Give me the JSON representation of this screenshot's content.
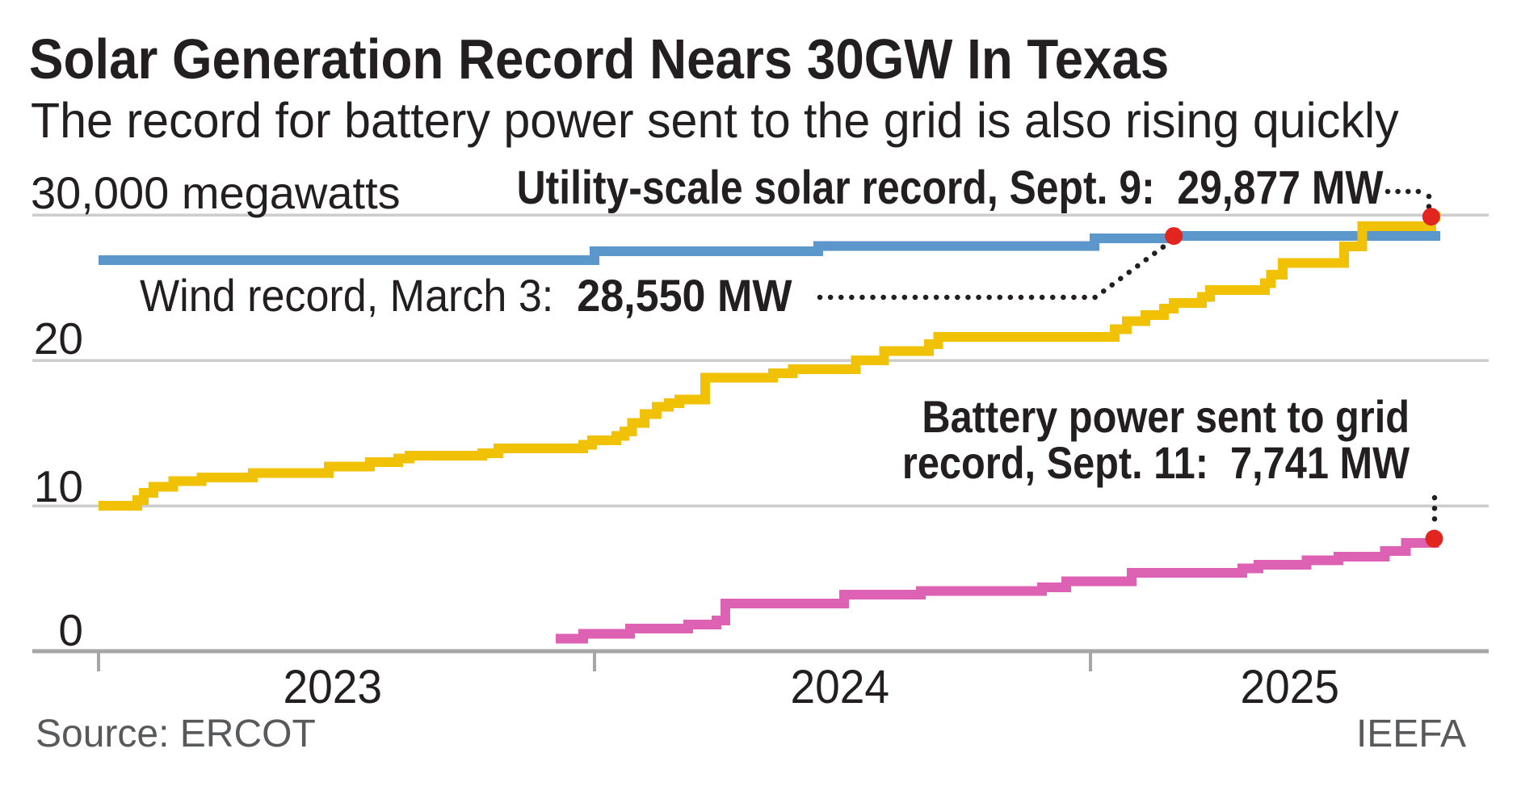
{
  "title": "Solar Generation Record Nears 30GW In Texas",
  "subtitle": "The record for battery power sent to the grid is also rising quickly",
  "y_axis": {
    "top_label": "30,000 megawatts",
    "tick_20": "20",
    "tick_10": "10",
    "tick_0": "0"
  },
  "x_axis": {
    "tick_2023": "2023",
    "tick_2024": "2024",
    "tick_2025": "2025"
  },
  "annotations": {
    "solar": {
      "prefix": "Utility-scale solar record, Sept. 9:",
      "value": "29,877 MW"
    },
    "wind": {
      "prefix": "Wind record, March 3:",
      "value": "28,550 MW"
    },
    "battery": {
      "line1": "Battery power sent to grid",
      "prefix": "record, Sept. 11:",
      "value": "7,741 MW"
    }
  },
  "source": "Source: ERCOT",
  "credit": "IEEFA",
  "colors": {
    "solar": "#f0c104",
    "wind": "#5b97cb",
    "battery": "#dd62b4",
    "marker": "#e3251f",
    "gridline": "#cdcdcd",
    "axis": "#a6a6a6",
    "text": "#231f20",
    "muted_text": "#58595b"
  },
  "chart_data": {
    "type": "line",
    "style": "step-after-record-lines",
    "xlabel": "",
    "ylabel": "megawatts",
    "x_range_years": [
      2023.0,
      2025.71
    ],
    "y_range_mw": [
      0,
      32000
    ],
    "y_gridlines_mw": [
      10000,
      20000,
      30000
    ],
    "x_ticks_years": [
      2023,
      2024,
      2025
    ],
    "grid": true,
    "legend_position": "annotated-inline",
    "series": [
      {
        "name": "Wind record",
        "color": "#5b97cb",
        "end_year": 2025.705,
        "marker": {
          "year": 2025.168,
          "mw": 28550,
          "label": "Wind record, March 3: 28,550 MW"
        },
        "steps": [
          [
            2023.0,
            26900
          ],
          [
            2024.0,
            27500
          ],
          [
            2024.451,
            27850
          ],
          [
            2025.008,
            28400
          ],
          [
            2025.168,
            28550
          ]
        ]
      },
      {
        "name": "Utility-scale solar record",
        "color": "#f0c104",
        "end_year": 2025.705,
        "marker": {
          "year": 2025.687,
          "mw": 29877,
          "label": "Utility-scale solar record, Sept. 9: 29,877 MW"
        },
        "steps": [
          [
            2023.0,
            10000
          ],
          [
            2023.078,
            10400
          ],
          [
            2023.091,
            10900
          ],
          [
            2023.111,
            11300
          ],
          [
            2023.151,
            11700
          ],
          [
            2023.208,
            11950
          ],
          [
            2023.311,
            12250
          ],
          [
            2023.464,
            12700
          ],
          [
            2023.547,
            13000
          ],
          [
            2023.604,
            13250
          ],
          [
            2023.627,
            13450
          ],
          [
            2023.774,
            13600
          ],
          [
            2023.806,
            13950
          ],
          [
            2023.977,
            14200
          ],
          [
            2023.995,
            14500
          ],
          [
            2024.044,
            14800
          ],
          [
            2024.06,
            15100
          ],
          [
            2024.076,
            15700
          ],
          [
            2024.101,
            16300
          ],
          [
            2024.125,
            16800
          ],
          [
            2024.15,
            17050
          ],
          [
            2024.171,
            17300
          ],
          [
            2024.223,
            18800
          ],
          [
            2024.36,
            19100
          ],
          [
            2024.4,
            19390
          ],
          [
            2024.527,
            20000
          ],
          [
            2024.584,
            20650
          ],
          [
            2024.674,
            21100
          ],
          [
            2024.693,
            21600
          ],
          [
            2025.049,
            22150
          ],
          [
            2025.073,
            22700
          ],
          [
            2025.111,
            23100
          ],
          [
            2025.148,
            23550
          ],
          [
            2025.168,
            23950
          ],
          [
            2025.225,
            24350
          ],
          [
            2025.241,
            24830
          ],
          [
            2025.352,
            25300
          ],
          [
            2025.364,
            25900
          ],
          [
            2025.388,
            26700
          ],
          [
            2025.511,
            27830
          ],
          [
            2025.548,
            29220
          ],
          [
            2025.687,
            29877
          ]
        ]
      },
      {
        "name": "Battery power sent to grid record",
        "color": "#dd62b4",
        "end_year": 2025.705,
        "marker": {
          "year": 2025.693,
          "mw": 7741,
          "label": "Battery power sent to grid record, Sept. 11: 7,741 MW"
        },
        "steps": [
          [
            2023.922,
            850
          ],
          [
            2023.977,
            1200
          ],
          [
            2024.072,
            1550
          ],
          [
            2024.189,
            1830
          ],
          [
            2024.246,
            2100
          ],
          [
            2024.264,
            3280
          ],
          [
            2024.503,
            3890
          ],
          [
            2024.658,
            4150
          ],
          [
            2024.902,
            4400
          ],
          [
            2024.951,
            4800
          ],
          [
            2025.083,
            5400
          ],
          [
            2025.306,
            5700
          ],
          [
            2025.339,
            5950
          ],
          [
            2025.436,
            6250
          ],
          [
            2025.5,
            6500
          ],
          [
            2025.594,
            6890
          ],
          [
            2025.636,
            7440
          ],
          [
            2025.693,
            7741
          ]
        ]
      }
    ]
  }
}
